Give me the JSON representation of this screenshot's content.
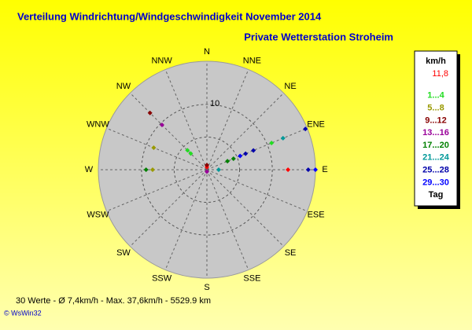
{
  "chart_data": {
    "type": "polar-scatter",
    "title": "Verteilung Windrichtung/Windgeschwindigkeit  November 2014",
    "subtitle": "Private Wetterstation Stroheim",
    "directions": [
      "N",
      "NNE",
      "NE",
      "ENE",
      "E",
      "ESE",
      "SE",
      "SSE",
      "S",
      "SSW",
      "SW",
      "WSW",
      "W",
      "WNW",
      "NW",
      "NNW"
    ],
    "rlim": [
      0,
      16.6
    ],
    "rticks": [
      {
        "value": 5,
        "label": null
      },
      10
    ],
    "legend_title": "km/h",
    "legend_note": "Tag",
    "series": [
      {
        "name": "11,8",
        "color": "#ff0000",
        "directions": [
          "E",
          "N"
        ],
        "values": [
          12.4,
          0.4
        ]
      },
      {
        "name": "1...4",
        "color": "#22dd22",
        "directions": [
          "ENE",
          "NW",
          "NW"
        ],
        "values": [
          10.7,
          4.2,
          3.5
        ]
      },
      {
        "name": "5...8",
        "color": "#999900",
        "directions": [
          "WNW",
          "W"
        ],
        "values": [
          8.8,
          8.3
        ]
      },
      {
        "name": "9...12",
        "color": "#880000",
        "directions": [
          "NW",
          "N"
        ],
        "values": [
          12.3,
          0.7
        ]
      },
      {
        "name": "13...16",
        "color": "#990099",
        "directions": [
          "NW",
          "S"
        ],
        "values": [
          9.7,
          0.3
        ]
      },
      {
        "name": "17...20",
        "color": "#008000",
        "directions": [
          "W",
          "ENE",
          "ENE"
        ],
        "values": [
          9.3,
          4.4,
          3.4
        ]
      },
      {
        "name": "21...24",
        "color": "#009999",
        "directions": [
          "ENE",
          "E"
        ],
        "values": [
          12.6,
          1.8
        ]
      },
      {
        "name": "25...28",
        "color": "#0000aa",
        "directions": [
          "ENE",
          "E",
          "ENE",
          "ENE"
        ],
        "values": [
          16.3,
          15.5,
          7.7,
          6.4
        ]
      },
      {
        "name": "29...30",
        "color": "#0000ff",
        "directions": [
          "E",
          "ENE"
        ],
        "values": [
          16.6,
          5.5
        ]
      }
    ],
    "footer": "30 Werte   -   Ø 7,4km/h  -  Max. 37,6km/h  -   5529.9 km",
    "credit": "© WsWin32"
  }
}
